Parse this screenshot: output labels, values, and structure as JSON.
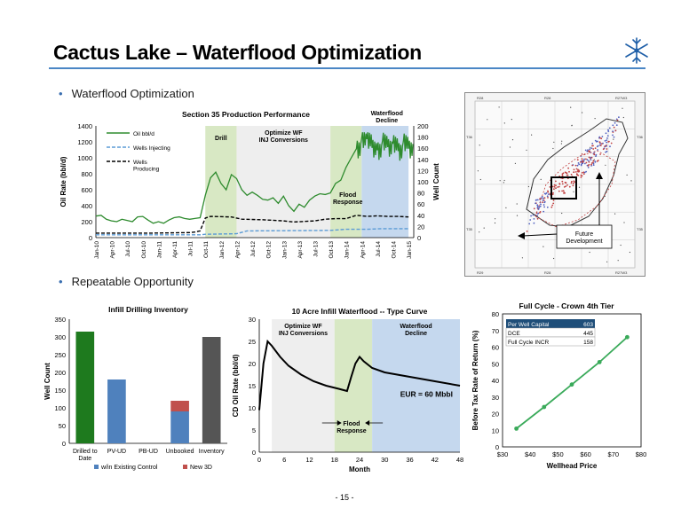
{
  "slide": {
    "title": "Cactus Lake – Waterflood Optimization",
    "bullet1": "Waterflood Optimization",
    "bullet2": "Repeatable Opportunity",
    "page_number": "- 15 -",
    "accent_color": "#4a86c5"
  },
  "logo": {
    "icon": "snowflake-logo-icon",
    "color": "#1f5fa8"
  },
  "map": {
    "label": "Future Development",
    "left_labels": [
      "T36",
      "T35"
    ],
    "right_labels": [
      "T36",
      "T35"
    ],
    "top_labels": [
      "R28",
      "R28",
      "R27W3"
    ],
    "bottom_labels": [
      "R29",
      "R28",
      "R27W3"
    ]
  },
  "chart_data": [
    {
      "type": "line",
      "title": "Section 35 Production Performance",
      "ylabel": "Oil Rate (bbl/d)",
      "y2label": "Well Count",
      "ylim": [
        0,
        1400
      ],
      "y2lim": [
        0,
        200
      ],
      "yticks": [
        "0",
        "200",
        "400",
        "600",
        "800",
        "1000",
        "1200",
        "1400"
      ],
      "y2ticks": [
        "0",
        "20",
        "40",
        "60",
        "80",
        "100",
        "120",
        "140",
        "160",
        "180",
        "200"
      ],
      "xlabels": [
        "Jan-10",
        "Apr-10",
        "Jul-10",
        "Oct-10",
        "Jan-11",
        "Apr-11",
        "Jul-11",
        "Oct-11",
        "Jan-12",
        "Apr-12",
        "Jul-12",
        "Oct-12",
        "Jan-13",
        "Apr-13",
        "Jul-13",
        "Oct-13",
        "Jan-14",
        "Apr-14",
        "Jul-14",
        "Oct-14",
        "Jan-15"
      ],
      "legend": [
        "Oil bbl/d",
        "Wells Injecting",
        "Wells Producing"
      ],
      "phases": [
        {
          "label": "Drill",
          "from": 21,
          "to": 27,
          "color": "#d8e8c4"
        },
        {
          "label": "Optimize WF INJ Conversions",
          "from": 27,
          "to": 45,
          "color": "#eeeeee"
        },
        {
          "label": "Flood Response",
          "from": 45,
          "to": 51,
          "color": "#d8e8c4"
        },
        {
          "label": "Waterflood Decline",
          "from": 51,
          "to": 60,
          "color": "#c5d8ee"
        }
      ],
      "series": [
        {
          "name": "Oil bbl/d",
          "axis": "left",
          "color": "#2e8b2e",
          "x": [
            0,
            1,
            2,
            3,
            4,
            5,
            6,
            7,
            8,
            9,
            10,
            11,
            12,
            13,
            14,
            15,
            16,
            17,
            18,
            19,
            20,
            21,
            22,
            23,
            24,
            25,
            26,
            27,
            28,
            29,
            30,
            31,
            32,
            33,
            34,
            35,
            36,
            37,
            38,
            39,
            40,
            41,
            42,
            43,
            44,
            45,
            46,
            47,
            48,
            49,
            50,
            51,
            52,
            53,
            54,
            55,
            56,
            57,
            58,
            59,
            60
          ],
          "y": [
            270,
            280,
            230,
            210,
            200,
            230,
            215,
            200,
            260,
            265,
            220,
            180,
            200,
            180,
            220,
            250,
            260,
            240,
            230,
            240,
            250,
            530,
            750,
            820,
            680,
            600,
            790,
            740,
            600,
            530,
            570,
            530,
            480,
            470,
            500,
            430,
            520,
            400,
            330,
            420,
            380,
            470,
            520,
            550,
            540,
            560,
            680,
            720,
            880,
            1000,
            1150,
            1280,
            1270,
            1160,
            1130,
            1250,
            1170,
            1220,
            1120,
            1240,
            1150
          ]
        },
        {
          "name": "Wells Injecting",
          "axis": "right",
          "color": "#5b9bd5",
          "dashed": true,
          "x": [
            0,
            20,
            21,
            27,
            29,
            45,
            48,
            52,
            55,
            60
          ],
          "y": [
            5,
            5,
            6,
            7,
            12,
            13,
            15,
            15,
            16,
            16
          ]
        },
        {
          "name": "Wells Producing",
          "axis": "right",
          "color": "#000000",
          "dashed": true,
          "x": [
            0,
            10,
            18,
            19,
            20,
            21,
            22,
            26,
            28,
            32,
            34,
            36,
            38,
            42,
            44,
            46,
            48,
            50,
            52,
            54,
            56,
            58,
            60
          ],
          "y": [
            8,
            8,
            9,
            10,
            12,
            35,
            38,
            37,
            33,
            32,
            31,
            30,
            28,
            30,
            33,
            34,
            34,
            40,
            38,
            39,
            38,
            38,
            37
          ]
        }
      ]
    },
    {
      "type": "bar",
      "title": "Infill Drilling Inventory",
      "ylabel": "Well Count",
      "ylim": [
        0,
        350
      ],
      "yticks": [
        "0",
        "50",
        "100",
        "150",
        "200",
        "250",
        "300",
        "350"
      ],
      "categories": [
        "Drilled to Date",
        "PV-UD",
        "PB-UD",
        "Unbooked",
        "Inventory"
      ],
      "series": [
        {
          "name": "w/in Existing Control",
          "color": "#4f81bd",
          "values": [
            0,
            180,
            0,
            90,
            0
          ]
        },
        {
          "name": "New 3D",
          "color": "#c0504d",
          "values": [
            0,
            0,
            0,
            30,
            0
          ]
        }
      ],
      "totals": [
        {
          "category": "Drilled to Date",
          "value": 315,
          "color": "#1e7a1e"
        },
        {
          "category": "Inventory",
          "value": 300,
          "color": "#555555"
        }
      ]
    },
    {
      "type": "line",
      "title": "10 Acre Infill Waterflood -- Type Curve",
      "xlabel": "Month",
      "ylabel": "CD Oil Rate (bbl/d)",
      "xlim": [
        0,
        48
      ],
      "ylim": [
        0,
        30
      ],
      "xticks": [
        "0",
        "6",
        "12",
        "18",
        "24",
        "30",
        "36",
        "42",
        "48"
      ],
      "yticks": [
        "0",
        "5",
        "10",
        "15",
        "20",
        "25",
        "30"
      ],
      "annotation": "EUR = 60 Mbbl",
      "phases": [
        {
          "label": "Optimize WF INJ Conversions",
          "from": 3,
          "to": 18,
          "color": "#eeeeee"
        },
        {
          "label": "Flood Response",
          "from": 18,
          "to": 27,
          "color": "#d8e8c4"
        },
        {
          "label": "Waterflood Decline",
          "from": 27,
          "to": 48,
          "color": "#c5d8ee"
        }
      ],
      "series": [
        {
          "name": "Type Curve",
          "color": "#000000",
          "x": [
            0,
            1,
            2,
            3,
            5,
            7,
            10,
            13,
            16,
            19,
            21,
            22,
            23,
            24,
            25,
            27,
            30,
            36,
            42,
            48
          ],
          "y": [
            9.5,
            20,
            25,
            24,
            21.5,
            19.5,
            17.5,
            16,
            15,
            14.3,
            13.8,
            17,
            20,
            21.5,
            20.5,
            19,
            18,
            17,
            16,
            15
          ]
        }
      ]
    },
    {
      "type": "line",
      "title": "Full Cycle - Crown 4th Tier",
      "xlabel": "Wellhead Price",
      "ylabel": "Before Tax Rate of Return (%)",
      "xlim": [
        30,
        80
      ],
      "ylim": [
        0,
        80
      ],
      "xticks": [
        "$30",
        "$40",
        "$50",
        "$60",
        "$70",
        "$80"
      ],
      "yticks": [
        "0",
        "10",
        "20",
        "30",
        "40",
        "50",
        "60",
        "70",
        "80"
      ],
      "series": [
        {
          "name": "BTRR",
          "color": "#3aaa5a",
          "x": [
            35,
            45,
            55,
            65,
            75
          ],
          "y": [
            11,
            24,
            37.5,
            51,
            66
          ]
        }
      ],
      "table": {
        "header": [
          "Per Well Capital",
          "603"
        ],
        "rows": [
          [
            "DCE",
            "445"
          ],
          [
            "Full Cycle INCR",
            "158"
          ]
        ]
      }
    }
  ]
}
